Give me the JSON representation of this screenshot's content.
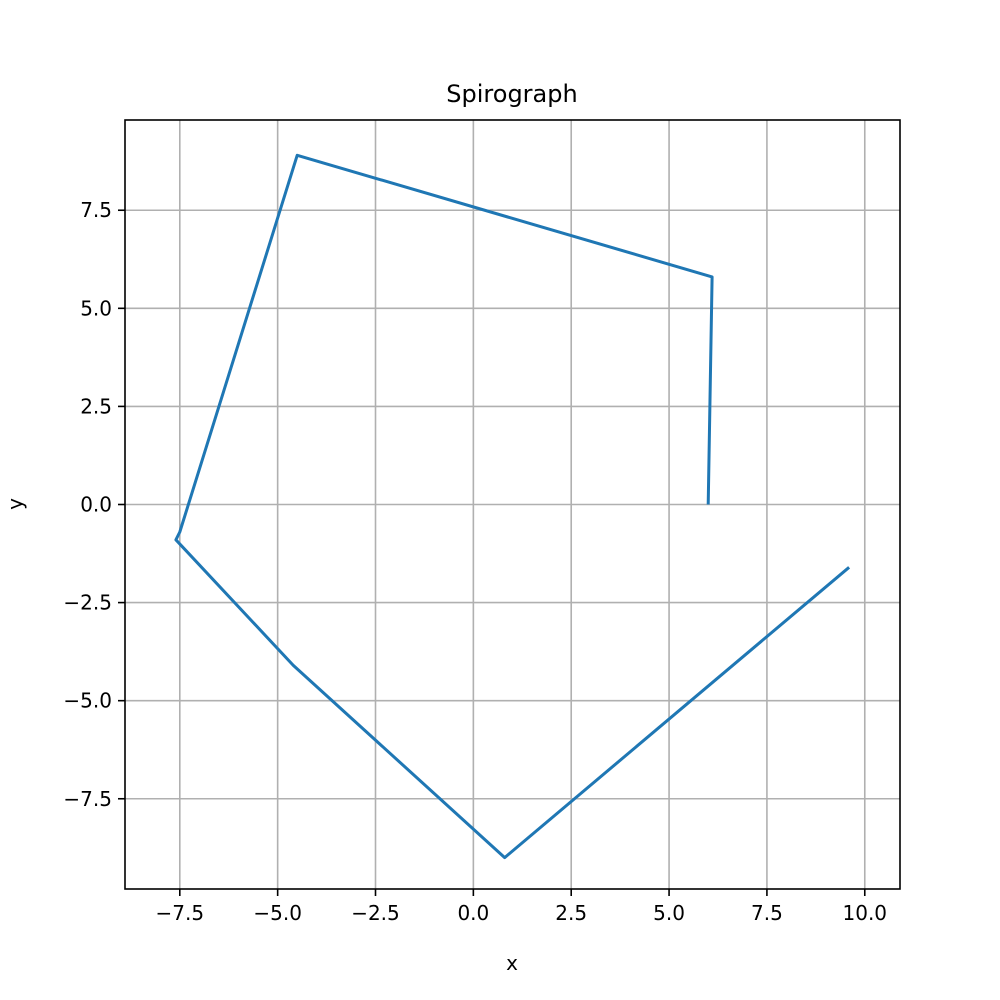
{
  "chart_data": {
    "type": "line",
    "title": "Spirograph",
    "xlabel": "x",
    "ylabel": "y",
    "xlim": [
      -8.9,
      10.9
    ],
    "ylim": [
      -9.8,
      9.8
    ],
    "grid": true,
    "legend": "none",
    "line_color": "#1f77b4",
    "grid_color": "#b0b0b0",
    "x_ticks": [
      -7.5,
      -5.0,
      -2.5,
      0.0,
      2.5,
      5.0,
      7.5,
      10.0
    ],
    "x_tick_labels": [
      "−7.5",
      "−5.0",
      "−2.5",
      "0.0",
      "2.5",
      "5.0",
      "7.5",
      "10.0"
    ],
    "y_ticks": [
      -7.5,
      -5.0,
      -2.5,
      0.0,
      2.5,
      5.0,
      7.5
    ],
    "y_tick_labels": [
      "−7.5",
      "−5.0",
      "−2.5",
      "0.0",
      "2.5",
      "5.0",
      "7.5"
    ],
    "series": [
      {
        "x": [
          6.0,
          6.1,
          -4.5,
          -7.5,
          -7.6,
          -4.6,
          0.8,
          9.6
        ],
        "y": [
          0.0,
          5.8,
          8.9,
          -0.7,
          -0.9,
          -4.1,
          -9.0,
          -1.6
        ]
      }
    ]
  }
}
